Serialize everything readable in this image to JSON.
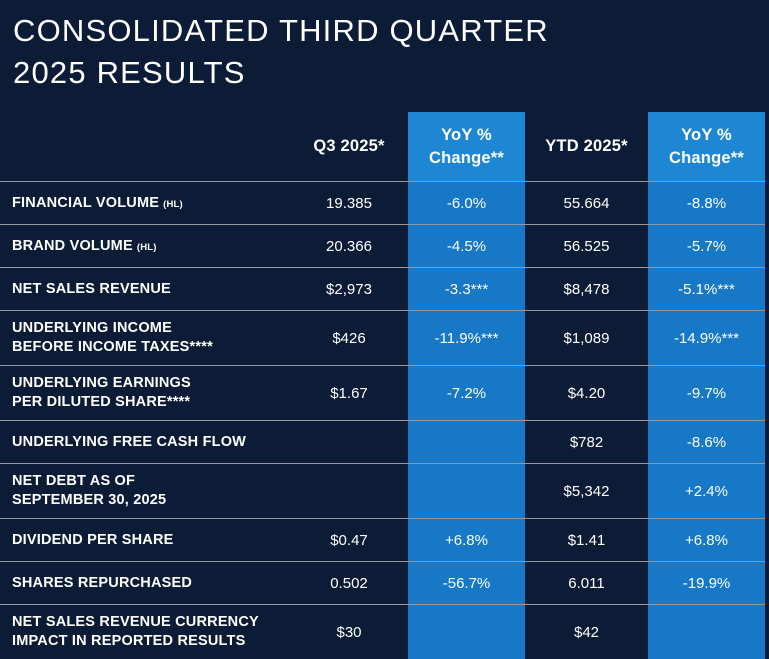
{
  "title": {
    "line1": "CONSOLIDATED THIRD QUARTER",
    "line2": "2025 RESULTS"
  },
  "colors": {
    "background": "#0d1c36",
    "header_blue": "#1e87d4",
    "cell_blue": "#1678c6",
    "text": "#ffffff",
    "separator": "rgba(255,255,255,0.55)"
  },
  "table": {
    "columns": [
      {
        "label": "Q3 2025*",
        "highlight": false
      },
      {
        "label": "YoY % Change**",
        "highlight": true
      },
      {
        "label": "YTD 2025*",
        "highlight": false
      },
      {
        "label": "YoY % Change**",
        "highlight": true
      }
    ],
    "rows": [
      {
        "label": "FINANCIAL VOLUME",
        "label_suffix": "(HL)",
        "values": [
          "19.385",
          "-6.0%",
          "55.664",
          "-8.8%"
        ]
      },
      {
        "label": "BRAND VOLUME",
        "label_suffix": "(HL)",
        "values": [
          "20.366",
          "-4.5%",
          "56.525",
          "-5.7%"
        ]
      },
      {
        "label": "NET SALES REVENUE",
        "values": [
          "$2,973",
          "-3.3***",
          "$8,478",
          "-5.1%***"
        ]
      },
      {
        "label": "UNDERLYING INCOME\nBEFORE INCOME TAXES****",
        "values": [
          "$426",
          "-11.9%***",
          "$1,089",
          "-14.9%***"
        ]
      },
      {
        "label": "UNDERLYING EARNINGS\nPER DILUTED SHARE****",
        "values": [
          "$1.67",
          "-7.2%",
          "$4.20",
          "-9.7%"
        ]
      },
      {
        "label": "UNDERLYING FREE CASH FLOW",
        "values": [
          "",
          "",
          "$782",
          "-8.6%"
        ]
      },
      {
        "label": "NET DEBT AS OF\nSEPTEMBER 30, 2025",
        "values": [
          "",
          "",
          "$5,342",
          "+2.4%"
        ]
      },
      {
        "label": "DIVIDEND PER SHARE",
        "values": [
          "$0.47",
          "+6.8%",
          "$1.41",
          "+6.8%"
        ]
      },
      {
        "label": "SHARES REPURCHASED",
        "values": [
          "0.502",
          "-56.7%",
          "6.011",
          "-19.9%"
        ]
      },
      {
        "label": "NET SALES REVENUE CURRENCY\nIMPACT IN REPORTED RESULTS",
        "values": [
          "$30",
          "",
          "$42",
          ""
        ]
      }
    ]
  },
  "chart_data": {
    "type": "table",
    "title": "CONSOLIDATED THIRD QUARTER 2025 RESULTS",
    "columns": [
      "",
      "Q3 2025*",
      "YoY % Change**",
      "YTD 2025*",
      "YoY % Change**"
    ],
    "rows": [
      [
        "FINANCIAL VOLUME (HL)",
        "19.385",
        "-6.0%",
        "55.664",
        "-8.8%"
      ],
      [
        "BRAND VOLUME (HL)",
        "20.366",
        "-4.5%",
        "56.525",
        "-5.7%"
      ],
      [
        "NET SALES REVENUE",
        "$2,973",
        "-3.3***",
        "$8,478",
        "-5.1%***"
      ],
      [
        "UNDERLYING INCOME BEFORE INCOME TAXES****",
        "$426",
        "-11.9%***",
        "$1,089",
        "-14.9%***"
      ],
      [
        "UNDERLYING EARNINGS PER DILUTED SHARE****",
        "$1.67",
        "-7.2%",
        "$4.20",
        "-9.7%"
      ],
      [
        "UNDERLYING FREE CASH FLOW",
        "",
        "",
        "$782",
        "-8.6%"
      ],
      [
        "NET DEBT AS OF SEPTEMBER 30, 2025",
        "",
        "",
        "$5,342",
        "+2.4%"
      ],
      [
        "DIVIDEND PER SHARE",
        "$0.47",
        "+6.8%",
        "$1.41",
        "+6.8%"
      ],
      [
        "SHARES REPURCHASED",
        "0.502",
        "-56.7%",
        "6.011",
        "-19.9%"
      ],
      [
        "NET SALES REVENUE CURRENCY IMPACT IN REPORTED RESULTS",
        "$30",
        "",
        "$42",
        ""
      ]
    ],
    "layout_hints": {
      "highlighted_columns": [
        2,
        4
      ],
      "highlight_color": "#1678c6",
      "background": "#0d1c36"
    }
  }
}
